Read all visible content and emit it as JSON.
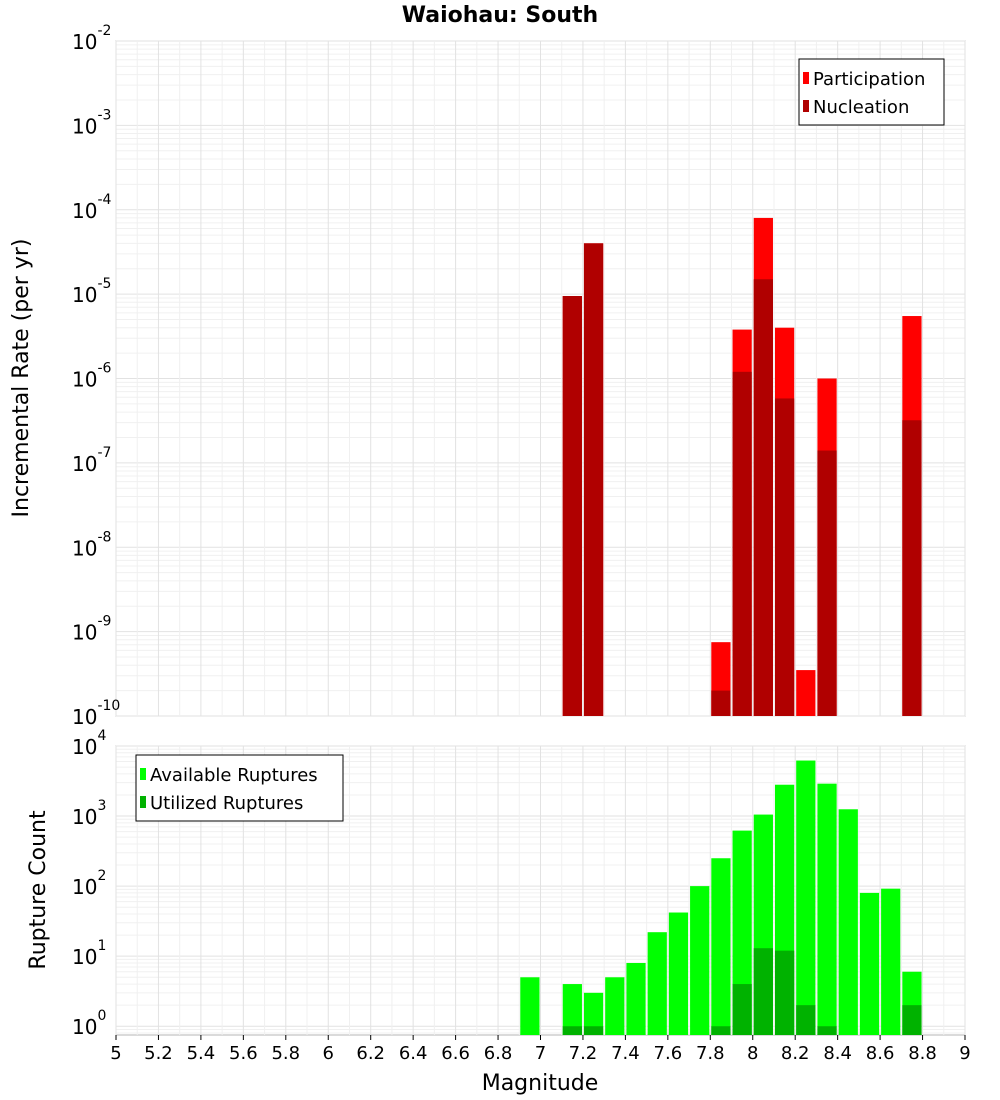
{
  "chart_data": [
    {
      "type": "bar",
      "title": "Waiohau: South",
      "xlabel": "",
      "ylabel": "Incremental Rate (per yr)",
      "yscale": "log",
      "ylim": [
        1e-10,
        0.01
      ],
      "xlim": [
        5,
        9
      ],
      "grid": true,
      "legend_position": "top-right",
      "y_tick_labels": [
        "10^-10",
        "10^-9",
        "10^-8",
        "10^-7",
        "10^-6",
        "10^-5",
        "10^-4",
        "10^-3",
        "10^-2"
      ],
      "series": [
        {
          "name": "Participation",
          "color": "#ff0000",
          "points": [
            {
              "x": 7.15,
              "y": 9.5e-06
            },
            {
              "x": 7.25,
              "y": 4e-05
            },
            {
              "x": 7.85,
              "y": 7.5e-10
            },
            {
              "x": 7.95,
              "y": 3.8e-06
            },
            {
              "x": 8.05,
              "y": 8e-05
            },
            {
              "x": 8.15,
              "y": 4e-06
            },
            {
              "x": 8.25,
              "y": 3.5e-10
            },
            {
              "x": 8.35,
              "y": 1e-06
            },
            {
              "x": 8.75,
              "y": 5.5e-06
            }
          ]
        },
        {
          "name": "Nucleation",
          "color": "#b00000",
          "points": [
            {
              "x": 7.15,
              "y": 9.5e-06
            },
            {
              "x": 7.25,
              "y": 4e-05
            },
            {
              "x": 7.85,
              "y": 2e-10
            },
            {
              "x": 7.95,
              "y": 1.2e-06
            },
            {
              "x": 8.05,
              "y": 1.5e-05
            },
            {
              "x": 8.15,
              "y": 5.8e-07
            },
            {
              "x": 8.35,
              "y": 1.4e-07
            },
            {
              "x": 8.75,
              "y": 3.2e-07
            }
          ]
        }
      ]
    },
    {
      "type": "bar",
      "title": "",
      "xlabel": "Magnitude",
      "ylabel": "Rupture Count",
      "yscale": "log",
      "ylim": [
        0.75,
        10000
      ],
      "xlim": [
        5,
        9
      ],
      "grid": true,
      "legend_position": "top-left",
      "y_tick_labels": [
        "10^0",
        "10^1",
        "10^2",
        "10^3",
        "10^4"
      ],
      "x_ticks": [
        "5",
        "5.2",
        "5.4",
        "5.6",
        "5.8",
        "6",
        "6.2",
        "6.4",
        "6.6",
        "6.8",
        "7",
        "7.2",
        "7.4",
        "7.6",
        "7.8",
        "8",
        "8.2",
        "8.4",
        "8.6",
        "8.8",
        "9"
      ],
      "series": [
        {
          "name": "Available Ruptures",
          "color": "#00ff00",
          "points": [
            {
              "x": 6.95,
              "y": 5
            },
            {
              "x": 7.15,
              "y": 4
            },
            {
              "x": 7.25,
              "y": 3
            },
            {
              "x": 7.35,
              "y": 5
            },
            {
              "x": 7.45,
              "y": 8
            },
            {
              "x": 7.55,
              "y": 22
            },
            {
              "x": 7.65,
              "y": 42
            },
            {
              "x": 7.75,
              "y": 100
            },
            {
              "x": 7.85,
              "y": 250
            },
            {
              "x": 7.95,
              "y": 620
            },
            {
              "x": 8.05,
              "y": 1050
            },
            {
              "x": 8.15,
              "y": 2800
            },
            {
              "x": 8.25,
              "y": 6200
            },
            {
              "x": 8.35,
              "y": 2900
            },
            {
              "x": 8.45,
              "y": 1250
            },
            {
              "x": 8.55,
              "y": 80
            },
            {
              "x": 8.65,
              "y": 92
            },
            {
              "x": 8.75,
              "y": 6
            }
          ]
        },
        {
          "name": "Utilized Ruptures",
          "color": "#00b200",
          "points": [
            {
              "x": 7.15,
              "y": 1
            },
            {
              "x": 7.25,
              "y": 1
            },
            {
              "x": 7.85,
              "y": 1
            },
            {
              "x": 7.95,
              "y": 4
            },
            {
              "x": 8.05,
              "y": 13
            },
            {
              "x": 8.15,
              "y": 12
            },
            {
              "x": 8.25,
              "y": 2
            },
            {
              "x": 8.35,
              "y": 1
            },
            {
              "x": 8.75,
              "y": 2
            }
          ]
        }
      ]
    }
  ]
}
